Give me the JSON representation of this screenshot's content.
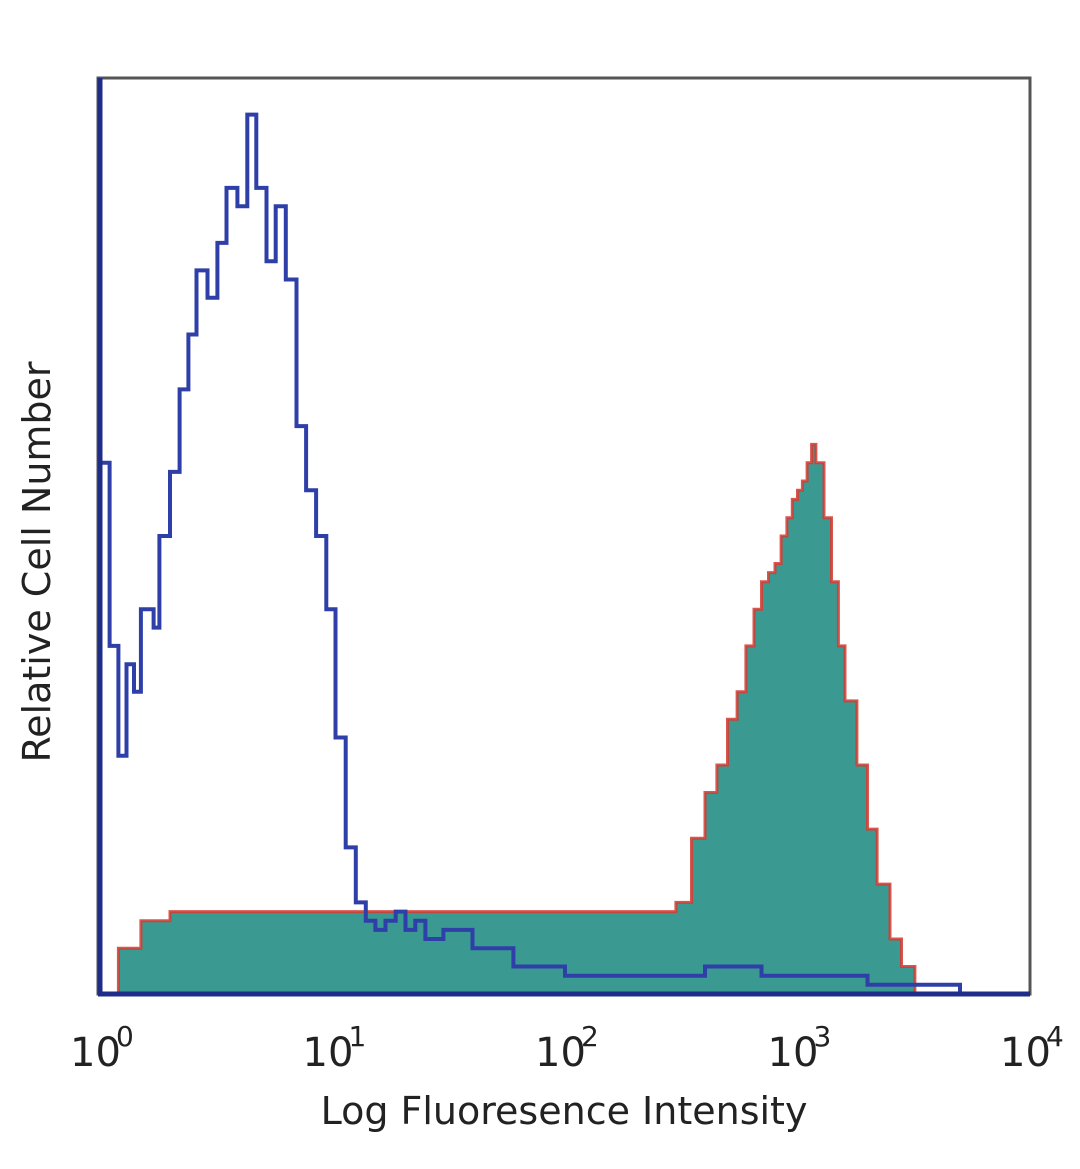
{
  "chart_data": {
    "type": "area",
    "xlabel": "Log Fluoresence Intensity",
    "ylabel": "Relative Cell Number",
    "x_scale": "log",
    "xlim": [
      1,
      10000
    ],
    "ylim": [
      0,
      1
    ],
    "y_ticks_shown": false,
    "x_ticks": [
      {
        "base": "10",
        "exp": "0",
        "value": 1
      },
      {
        "base": "10",
        "exp": "1",
        "value": 10
      },
      {
        "base": "10",
        "exp": "2",
        "value": 100
      },
      {
        "base": "10",
        "exp": "3",
        "value": 1000
      },
      {
        "base": "10",
        "exp": "4",
        "value": 10000
      }
    ],
    "grid": false,
    "series": [
      {
        "style": "outline",
        "color": "#2f3fa8",
        "x": [
          1.0,
          1.1,
          1.2,
          1.3,
          1.4,
          1.5,
          1.7,
          1.8,
          2.0,
          2.2,
          2.4,
          2.6,
          2.9,
          3.2,
          3.5,
          3.9,
          4.3,
          4.7,
          5.2,
          5.7,
          6.3,
          7.0,
          7.7,
          8.5,
          9.4,
          10.3,
          11.4,
          12.6,
          13.9,
          15.3,
          16.9,
          18.7,
          20.6,
          22.7,
          25.1,
          30.0,
          40.0,
          60.0,
          100.0,
          200.0,
          400.0,
          700.0,
          1000.0,
          2000.0,
          5000.0,
          10000.0
        ],
        "y": [
          0.58,
          0.38,
          0.26,
          0.36,
          0.33,
          0.42,
          0.4,
          0.5,
          0.57,
          0.66,
          0.72,
          0.79,
          0.76,
          0.82,
          0.88,
          0.86,
          0.96,
          0.88,
          0.8,
          0.86,
          0.78,
          0.62,
          0.55,
          0.5,
          0.42,
          0.28,
          0.16,
          0.1,
          0.08,
          0.07,
          0.08,
          0.09,
          0.07,
          0.08,
          0.06,
          0.07,
          0.05,
          0.03,
          0.02,
          0.02,
          0.03,
          0.02,
          0.02,
          0.01,
          0.0,
          0.0
        ]
      },
      {
        "style": "filled",
        "color": "#3a9a92",
        "edge_color": "#d43a30",
        "x": [
          1.0,
          1.2,
          1.5,
          2.0,
          3.0,
          5.0,
          8.0,
          12.0,
          20.0,
          30.0,
          50.0,
          80.0,
          120.0,
          200.0,
          300.0,
          350.0,
          400.0,
          450.0,
          500.0,
          550.0,
          600.0,
          650.0,
          700.0,
          750.0,
          800.0,
          850.0,
          900.0,
          950.0,
          1000.0,
          1050.0,
          1100.0,
          1150.0,
          1200.0,
          1300.0,
          1400.0,
          1500.0,
          1600.0,
          1800.0,
          2000.0,
          2200.0,
          2500.0,
          2800.0,
          3200.0,
          4000.0,
          10000.0
        ],
        "y": [
          0.0,
          0.05,
          0.08,
          0.09,
          0.09,
          0.09,
          0.09,
          0.09,
          0.09,
          0.09,
          0.09,
          0.09,
          0.09,
          0.09,
          0.1,
          0.17,
          0.22,
          0.25,
          0.3,
          0.33,
          0.38,
          0.42,
          0.45,
          0.46,
          0.47,
          0.5,
          0.52,
          0.54,
          0.55,
          0.56,
          0.58,
          0.6,
          0.58,
          0.52,
          0.45,
          0.38,
          0.32,
          0.25,
          0.18,
          0.12,
          0.06,
          0.03,
          0.0,
          0.0,
          0.0
        ]
      }
    ]
  }
}
